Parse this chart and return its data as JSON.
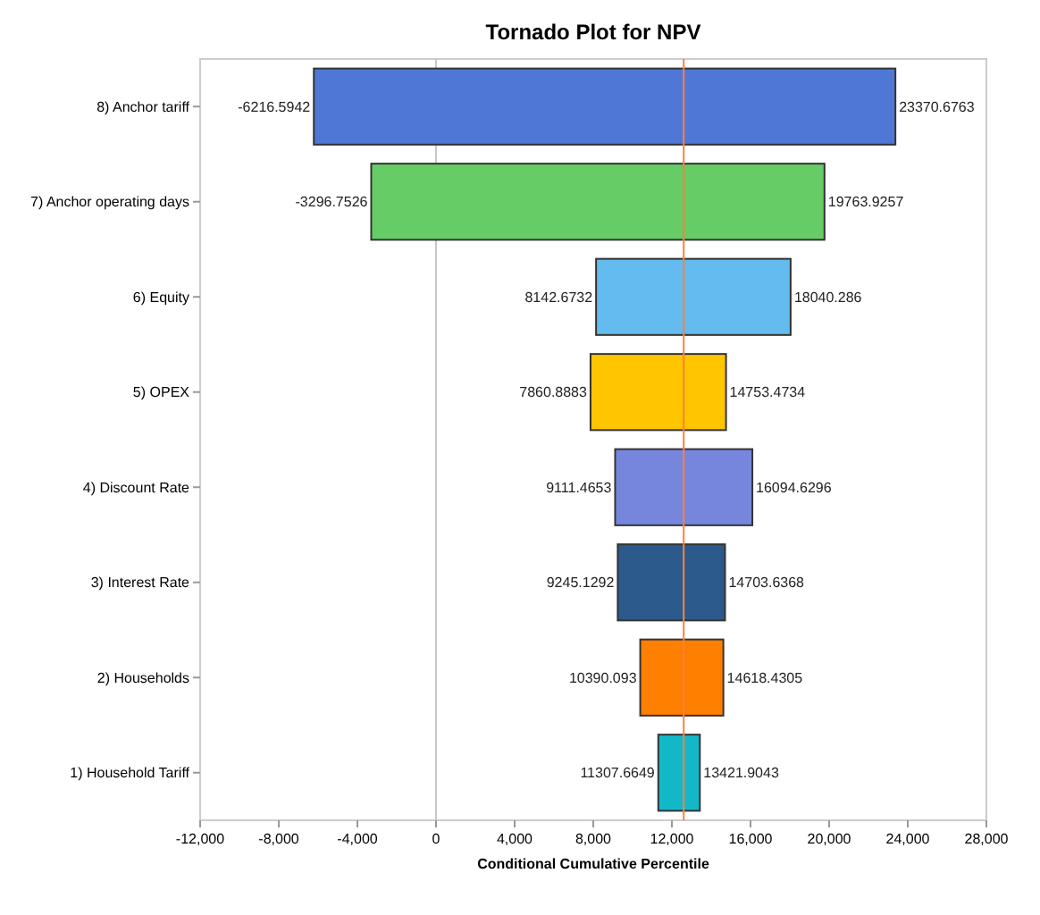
{
  "chart_data": {
    "type": "bar",
    "orientation": "horizontal",
    "title": "Tornado Plot for NPV",
    "xlabel": "Conditional Cumulative Percentile",
    "categories": [
      "8) Anchor tariff",
      "7) Anchor operating days",
      "6) Equity",
      "5) OPEX",
      "4) Discount Rate",
      "3) Interest Rate",
      "2) Households",
      "1) Household Tariff"
    ],
    "base": [
      -6216.5942,
      -3296.7526,
      8142.6732,
      7860.8883,
      9111.4653,
      9245.1292,
      10390.093,
      11307.6649
    ],
    "values": [
      29587.2705,
      23060.6783,
      9897.6128,
      6892.5851,
      6983.1643,
      5458.5076,
      4228.3375,
      2114.2394
    ],
    "colors": [
      "#4f77d6",
      "#66cc66",
      "#63bbef",
      "#ffc600",
      "#7786dd",
      "#2c5a8c",
      "#ff7f00",
      "#13b8c8"
    ],
    "xlim": [
      -12000,
      28000
    ],
    "xticks": [
      {
        "value": -12000,
        "label": "-12,000"
      },
      {
        "value": -8000,
        "label": "-8,000"
      },
      {
        "value": -4000,
        "label": "-4,000"
      },
      0,
      {
        "value": 4000,
        "label": "4,000"
      },
      {
        "value": 8000,
        "label": "8,000"
      },
      {
        "value": 12000,
        "label": "12,000"
      },
      {
        "value": 16000,
        "label": "16,000"
      },
      {
        "value": 20000,
        "label": "20,000"
      },
      {
        "value": 24000,
        "label": "24,000"
      },
      {
        "value": 28000,
        "label": "28,000"
      }
    ],
    "ref_lines": [
      {
        "axis": "x",
        "value": 0,
        "color": "#c8c8c8"
      },
      {
        "axis": "x",
        "value": 12600,
        "color": "#ff7f3f"
      }
    ],
    "annotations": [
      {
        "text": "-6216.5942",
        "x": -6216.5942,
        "y": "8) Anchor tariff"
      },
      {
        "text": "23370.6763",
        "x": 23370.6763,
        "y": "8) Anchor tariff"
      },
      {
        "text": "-3296.7526",
        "x": -3296.7526,
        "y": "7) Anchor operating days"
      },
      {
        "text": "19763.9257",
        "x": 19763.9257,
        "y": "7) Anchor operating days"
      },
      {
        "text": "8142.6732",
        "x": 8142.6732,
        "y": "6) Equity"
      },
      {
        "text": "18040.286",
        "x": 18040.286,
        "y": "6) Equity"
      },
      {
        "text": "7860.8883",
        "x": 7860.8883,
        "y": "5) OPEX"
      },
      {
        "text": "14753.4734",
        "x": 14753.4734,
        "y": "5) OPEX"
      },
      {
        "text": "9111.4653",
        "x": 9111.4653,
        "y": "4) Discount Rate"
      },
      {
        "text": "16094.6296",
        "x": 16094.6296,
        "y": "4) Discount Rate"
      },
      {
        "text": "9245.1292",
        "x": 9245.1292,
        "y": "3) Interest Rate"
      },
      {
        "text": "14703.6368",
        "x": 14703.6368,
        "y": "3) Interest Rate"
      },
      {
        "text": "10390.093",
        "x": 10390.093,
        "y": "2) Households"
      },
      {
        "text": "14618.4305",
        "x": 14618.4305,
        "y": "2) Households"
      },
      {
        "text": "11307.6649",
        "x": 11307.6649,
        "y": "1) Household Tariff"
      },
      {
        "text": "13421.9043",
        "x": 13421.9043,
        "y": "1) Household Tariff"
      }
    ]
  }
}
